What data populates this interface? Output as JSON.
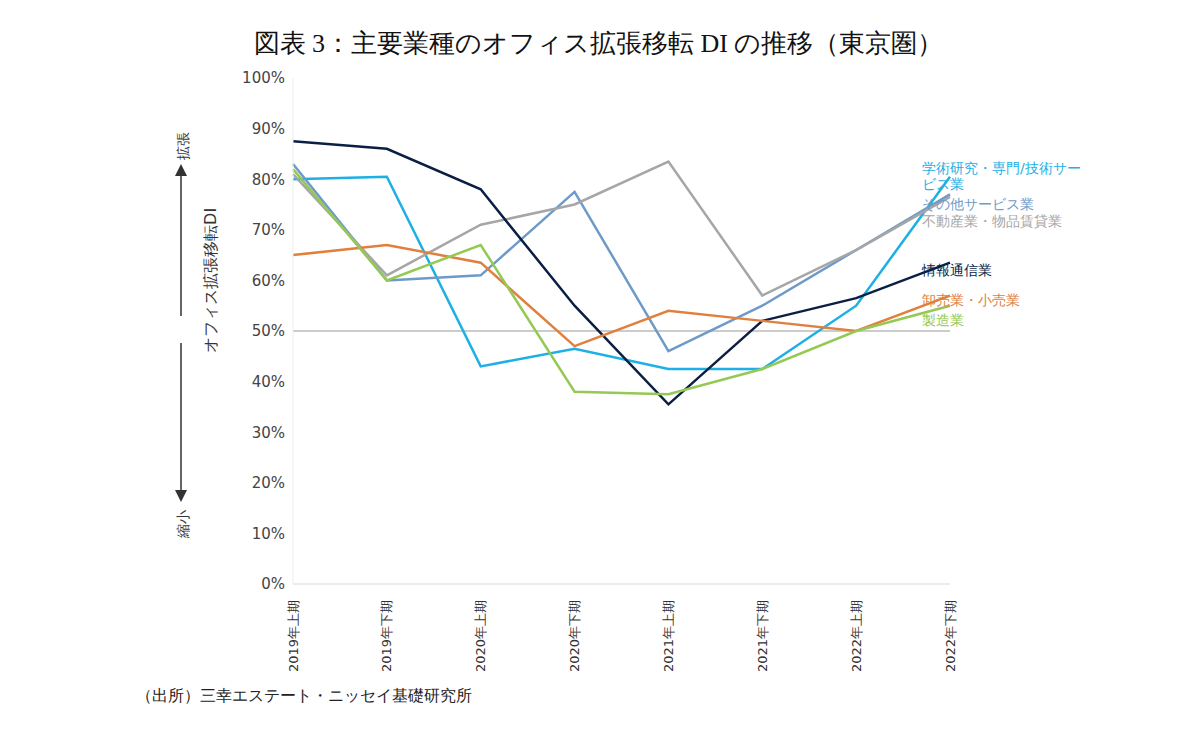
{
  "chart_data": {
    "type": "line",
    "title": "図表 3：主要業種のオフィス拡張移転 DI の推移（東京圏）",
    "y_label": "オフィス拡張移転DI",
    "annotations": [
      "拡張",
      "縮小"
    ],
    "source": "（出所）三幸エステート・ニッセイ基礎研究所",
    "categories": [
      "2019年上期",
      "2019年下期",
      "2020年上期",
      "2020年下期",
      "2021年上期",
      "2021年下期",
      "2022年上期",
      "2022年下期"
    ],
    "series": [
      {
        "name": "学術研究・専門/技術サービス業",
        "color": "#1CB0E4",
        "values": [
          80,
          80.5,
          43,
          46.5,
          42.5,
          42.5,
          55,
          80.5
        ]
      },
      {
        "name": "その他サービス業",
        "color": "#6D9AC9",
        "values": [
          83,
          60,
          61,
          77.5,
          46,
          55,
          66,
          77
        ]
      },
      {
        "name": "不動産業・物品賃貸業",
        "color": "#A6A6A6",
        "values": [
          81,
          61,
          71,
          75,
          83.5,
          57,
          66,
          76.5
        ]
      },
      {
        "name": "情報通信業",
        "color": "#0B1F45",
        "values": [
          87.5,
          86,
          78,
          55,
          35.5,
          52,
          56.5,
          63.5
        ]
      },
      {
        "name": "卸売業・小売業",
        "color": "#E0803E",
        "values": [
          65,
          67,
          63.5,
          47,
          54,
          52,
          50,
          57
        ]
      },
      {
        "name": "製造業",
        "color": "#94C954",
        "values": [
          82,
          60,
          67,
          38,
          37.5,
          42.5,
          50,
          55
        ]
      }
    ],
    "reference_lines": [
      50
    ],
    "ylim": [
      0,
      100
    ],
    "yticks": [
      {
        "value": 0,
        "label": "0%"
      },
      {
        "value": 10,
        "label": "10%"
      },
      {
        "value": 20,
        "label": "20%"
      },
      {
        "value": 30,
        "label": "30%"
      },
      {
        "value": 40,
        "label": "40%"
      },
      {
        "value": 50,
        "label": "50%"
      },
      {
        "value": 60,
        "label": "60%"
      },
      {
        "value": 70,
        "label": "70%"
      },
      {
        "value": 80,
        "label": "80%"
      },
      {
        "value": 90,
        "label": "90%"
      },
      {
        "value": 100,
        "label": "100%"
      }
    ],
    "grid": false
  }
}
